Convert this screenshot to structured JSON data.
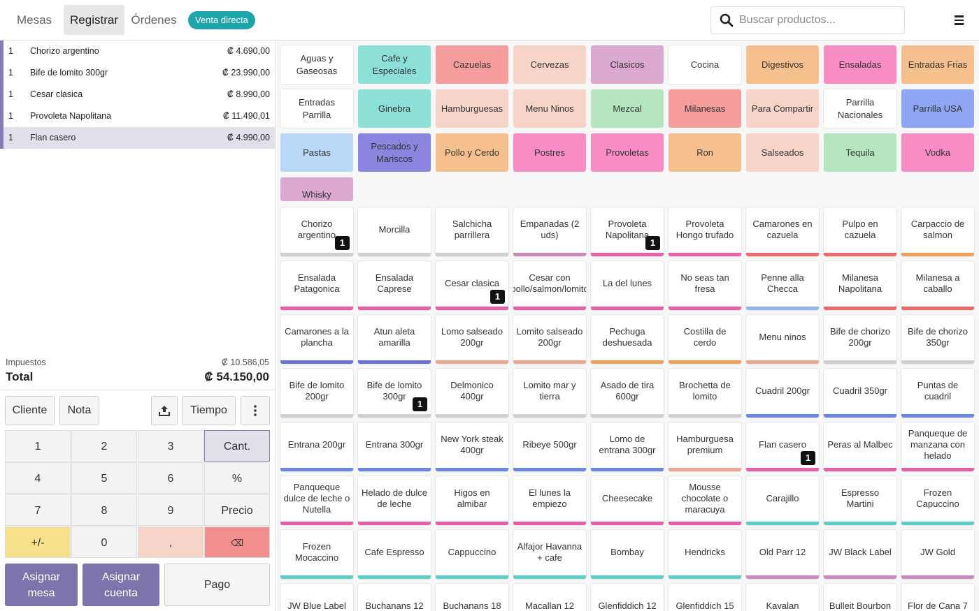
{
  "header": {
    "tabs": [
      "Mesas",
      "Registrar",
      "Órdenes"
    ],
    "active_tab": "Registrar",
    "direct_sale": "Venta directa",
    "search_placeholder": "Buscar productos..."
  },
  "order": {
    "lines": [
      {
        "qty": "1",
        "name": "Chorizo argentino",
        "price": "₡ 4.690,00"
      },
      {
        "qty": "1",
        "name": "Bife de lomito 300gr",
        "price": "₡ 23.990,00"
      },
      {
        "qty": "1",
        "name": "Cesar clasica",
        "price": "₡ 8.990,00"
      },
      {
        "qty": "1",
        "name": "Provoleta Napolitana",
        "price": "₡ 11.490,01"
      },
      {
        "qty": "1",
        "name": "Flan casero",
        "price": "₡ 4.990,00"
      }
    ],
    "selected_index": 4,
    "tax_label": "Impuestos",
    "tax_value": "₡ 10.586,05",
    "total_label": "Total",
    "total_value": "₡ 54.150,00"
  },
  "controls": {
    "client": "Cliente",
    "note": "Nota",
    "time": "Tiempo"
  },
  "numpad": [
    "1",
    "2",
    "3",
    "Cant.",
    "4",
    "5",
    "6",
    "%",
    "7",
    "8",
    "9",
    "Precio",
    "+/-",
    "0",
    ",",
    "⌫"
  ],
  "actions": {
    "assign_table": "Asignar mesa",
    "assign_account": "Asignar cuenta",
    "pay": "Pago"
  },
  "colors": {
    "teal": "#8de0d8",
    "salmon": "#f59d9d",
    "peach": "#f6d4c8",
    "mauve": "#dba8d0",
    "orange": "#f5c08e",
    "pink": "#f78dc4",
    "blue": "#8ea6f3",
    "green": "#b5e6bf",
    "lightblue": "#b9d7f6",
    "violet": "#8a86df",
    "white": "#ffffff"
  },
  "categories": [
    {
      "label": "Aguas y Gaseosas",
      "color": "white"
    },
    {
      "label": "Cafe y Especiales",
      "color": "teal"
    },
    {
      "label": "Cazuelas",
      "color": "salmon"
    },
    {
      "label": "Cervezas",
      "color": "peach"
    },
    {
      "label": "Clasicos",
      "color": "mauve"
    },
    {
      "label": "Cocina",
      "color": "white"
    },
    {
      "label": "Digestivos",
      "color": "orange"
    },
    {
      "label": "Ensaladas",
      "color": "pink"
    },
    {
      "label": "Entradas Frias",
      "color": "orange"
    },
    {
      "label": "Entradas Parrilla",
      "color": "white"
    },
    {
      "label": "Ginebra",
      "color": "teal"
    },
    {
      "label": "Hamburguesas",
      "color": "peach"
    },
    {
      "label": "Menu Ninos",
      "color": "peach"
    },
    {
      "label": "Mezcal",
      "color": "green"
    },
    {
      "label": "Milanesas",
      "color": "salmon"
    },
    {
      "label": "Para Compartir",
      "color": "peach"
    },
    {
      "label": "Parrilla Nacionales",
      "color": "white"
    },
    {
      "label": "Parrilla USA",
      "color": "blue"
    },
    {
      "label": "Pastas",
      "color": "lightblue"
    },
    {
      "label": "Pescados y Mariscos",
      "color": "violet"
    },
    {
      "label": "Pollo y Cerdo",
      "color": "orange"
    },
    {
      "label": "Postres",
      "color": "pink"
    },
    {
      "label": "Provoletas",
      "color": "pink"
    },
    {
      "label": "Ron",
      "color": "orange"
    },
    {
      "label": "Salseados",
      "color": "peach"
    },
    {
      "label": "Tequila",
      "color": "green"
    },
    {
      "label": "Vodka",
      "color": "pink"
    },
    {
      "label": "Whisky",
      "color": "mauve"
    }
  ],
  "products": [
    {
      "name": "Chorizo argentino",
      "bar": "#cfcfcf",
      "qty": "1"
    },
    {
      "name": "Morcilla",
      "bar": "#cfcfcf"
    },
    {
      "name": "Salchicha parrillera",
      "bar": "#cfcfcf"
    },
    {
      "name": "Empanadas (2 uds)",
      "bar": "#c98aba"
    },
    {
      "name": "Provoleta Napolitana",
      "bar": "#e65fa8",
      "qty": "1"
    },
    {
      "name": "Provoleta Hongo trufado",
      "bar": "#e65fa8"
    },
    {
      "name": "Camarones en cazuela",
      "bar": "#ec6a6a"
    },
    {
      "name": "Pulpo en cazuela",
      "bar": "#ec6a6a"
    },
    {
      "name": "Carpaccio de salmon",
      "bar": "#efa25c"
    },
    {
      "name": "Ensalada Patagonica",
      "bar": "#e65fa8"
    },
    {
      "name": "Ensalada Caprese",
      "bar": "#e65fa8"
    },
    {
      "name": "Cesar clasica",
      "bar": "#e65fa8",
      "qty": "1"
    },
    {
      "name": "Cesar con pollo/salmon/lomito",
      "bar": "#e65fa8"
    },
    {
      "name": "La del lunes",
      "bar": "#e65fa8"
    },
    {
      "name": "No seas tan fresa",
      "bar": "#e65fa8"
    },
    {
      "name": "Penne alla Checca",
      "bar": "#8fb6ea"
    },
    {
      "name": "Milanesa Napolitana",
      "bar": "#ec6a6a"
    },
    {
      "name": "Milanesa a caballo",
      "bar": "#ec6a6a"
    },
    {
      "name": "Camarones a la plancha",
      "bar": "#6b72d6"
    },
    {
      "name": "Atun aleta amarilla",
      "bar": "#6b72d6"
    },
    {
      "name": "Lomo salseado 200gr",
      "bar": "#eaa98f"
    },
    {
      "name": "Lomito salseado 200gr",
      "bar": "#eaa98f"
    },
    {
      "name": "Pechuga deshuesada",
      "bar": "#efa25c"
    },
    {
      "name": "Costilla de cerdo",
      "bar": "#efa25c"
    },
    {
      "name": "Menu ninos",
      "bar": "#eaa98f"
    },
    {
      "name": "Bife de chorizo 200gr",
      "bar": "#cfcfcf"
    },
    {
      "name": "Bife de chorizo 350gr",
      "bar": "#cfcfcf"
    },
    {
      "name": "Bife de lomito 200gr",
      "bar": "#cfcfcf"
    },
    {
      "name": "Bife de lomito 300gr",
      "bar": "#cfcfcf",
      "qty": "1"
    },
    {
      "name": "Delmonico 400gr",
      "bar": "#cfcfcf"
    },
    {
      "name": "Lomito mar y tierra",
      "bar": "#cfcfcf"
    },
    {
      "name": "Asado de tira 600gr",
      "bar": "#cfcfcf"
    },
    {
      "name": "Brochetta de lomito",
      "bar": "#cfcfcf"
    },
    {
      "name": "Cuadril 200gr",
      "bar": "#6b86e6"
    },
    {
      "name": "Cuadril 350gr",
      "bar": "#6b86e6"
    },
    {
      "name": "Puntas de cuadril",
      "bar": "#6b86e6"
    },
    {
      "name": "Entrana 200gr",
      "bar": "#6b86e6"
    },
    {
      "name": "Entrana 300gr",
      "bar": "#6b86e6"
    },
    {
      "name": "New York steak 400gr",
      "bar": "#6b86e6"
    },
    {
      "name": "Ribeye 500gr",
      "bar": "#6b86e6"
    },
    {
      "name": "Lomo de entrana 300gr",
      "bar": "#6b86e6"
    },
    {
      "name": "Hamburguesa premium",
      "bar": "#eaa98f"
    },
    {
      "name": "Flan casero",
      "bar": "#e65fa8",
      "qty": "1"
    },
    {
      "name": "Peras al Malbec",
      "bar": "#e65fa8"
    },
    {
      "name": "Panqueque de manzana con helado",
      "bar": "#e65fa8"
    },
    {
      "name": "Panqueque dulce de leche o Nutella",
      "bar": "#e65fa8"
    },
    {
      "name": "Helado de dulce de leche",
      "bar": "#e65fa8"
    },
    {
      "name": "Higos en almibar",
      "bar": "#e65fa8"
    },
    {
      "name": "El lunes la empiezo",
      "bar": "#e65fa8"
    },
    {
      "name": "Cheesecake",
      "bar": "#e65fa8"
    },
    {
      "name": "Mousse chocolate o maracuya",
      "bar": "#e65fa8"
    },
    {
      "name": "Carajillo",
      "bar": "#5ccfc4"
    },
    {
      "name": "Espresso Martini",
      "bar": "#5ccfc4"
    },
    {
      "name": "Frozen Capuccino",
      "bar": "#5ccfc4"
    },
    {
      "name": "Frozen Mocaccino",
      "bar": "#5ccfc4"
    },
    {
      "name": "Cafe Espresso",
      "bar": "#5ccfc4"
    },
    {
      "name": "Cappuccino",
      "bar": "#5ccfc4"
    },
    {
      "name": "Alfajor Havanna + cafe",
      "bar": "#5ccfc4"
    },
    {
      "name": "Bombay",
      "bar": "#5ccfc4"
    },
    {
      "name": "Hendricks",
      "bar": "#5ccfc4"
    },
    {
      "name": "Old Parr 12",
      "bar": "#c98aba"
    },
    {
      "name": "JW Black Label",
      "bar": "#c98aba"
    },
    {
      "name": "JW Gold",
      "bar": "#c98aba"
    },
    {
      "name": "JW Blue Label",
      "bar": "#c98aba"
    },
    {
      "name": "Buchanans 12",
      "bar": "#c98aba"
    },
    {
      "name": "Buchanans 18",
      "bar": "#c98aba"
    },
    {
      "name": "Macallan 12",
      "bar": "#c98aba"
    },
    {
      "name": "Glenfiddich 12",
      "bar": "#c98aba"
    },
    {
      "name": "Glenfiddich 15",
      "bar": "#c98aba"
    },
    {
      "name": "Kavalan",
      "bar": "#c98aba"
    },
    {
      "name": "Bulleit Bourbon",
      "bar": "#c98aba"
    },
    {
      "name": "Flor de Cana 7",
      "bar": "#efa25c"
    }
  ]
}
